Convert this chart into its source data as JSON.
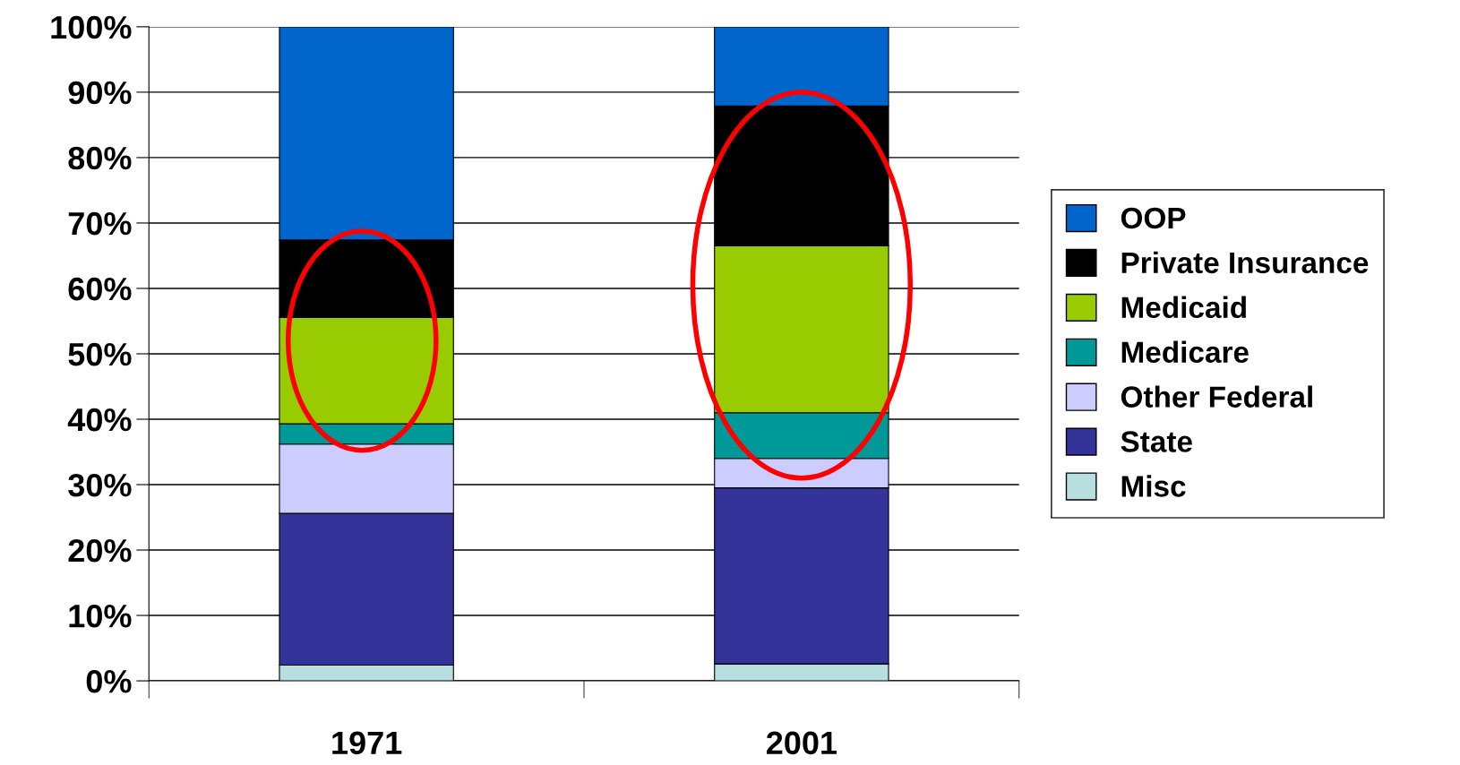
{
  "chart_data": {
    "type": "bar",
    "stacked": true,
    "categories": [
      "1971",
      "2001"
    ],
    "series": [
      {
        "name": "Misc",
        "color": "#b7dfe0",
        "values": [
          2.4,
          2.6
        ]
      },
      {
        "name": "State",
        "color": "#333399",
        "values": [
          23.2,
          26.9
        ]
      },
      {
        "name": "Other Federal",
        "color": "#ccccff",
        "values": [
          10.6,
          4.5
        ]
      },
      {
        "name": "Medicare",
        "color": "#009999",
        "values": [
          3.1,
          7.0
        ]
      },
      {
        "name": "Medicaid",
        "color": "#99cc00",
        "values": [
          16.3,
          25.5
        ]
      },
      {
        "name": "Private Insurance",
        "color": "#000000",
        "values": [
          11.8,
          21.4
        ]
      },
      {
        "name": "OOP",
        "color": "#0066cc",
        "values": [
          32.6,
          12.1
        ]
      }
    ],
    "ylim": [
      0,
      100
    ],
    "yticks": [
      {
        "value": 0,
        "label": "0%"
      },
      {
        "value": 10,
        "label": "10%"
      },
      {
        "value": 20,
        "label": "20%"
      },
      {
        "value": 30,
        "label": "30%"
      },
      {
        "value": 40,
        "label": "40%"
      },
      {
        "value": 50,
        "label": "50%"
      },
      {
        "value": 60,
        "label": "60%"
      },
      {
        "value": 70,
        "label": "70%"
      },
      {
        "value": 80,
        "label": "80%"
      },
      {
        "value": 90,
        "label": "90%"
      },
      {
        "value": 100,
        "label": "100%"
      }
    ],
    "grid": "y",
    "legend": "right"
  }
}
